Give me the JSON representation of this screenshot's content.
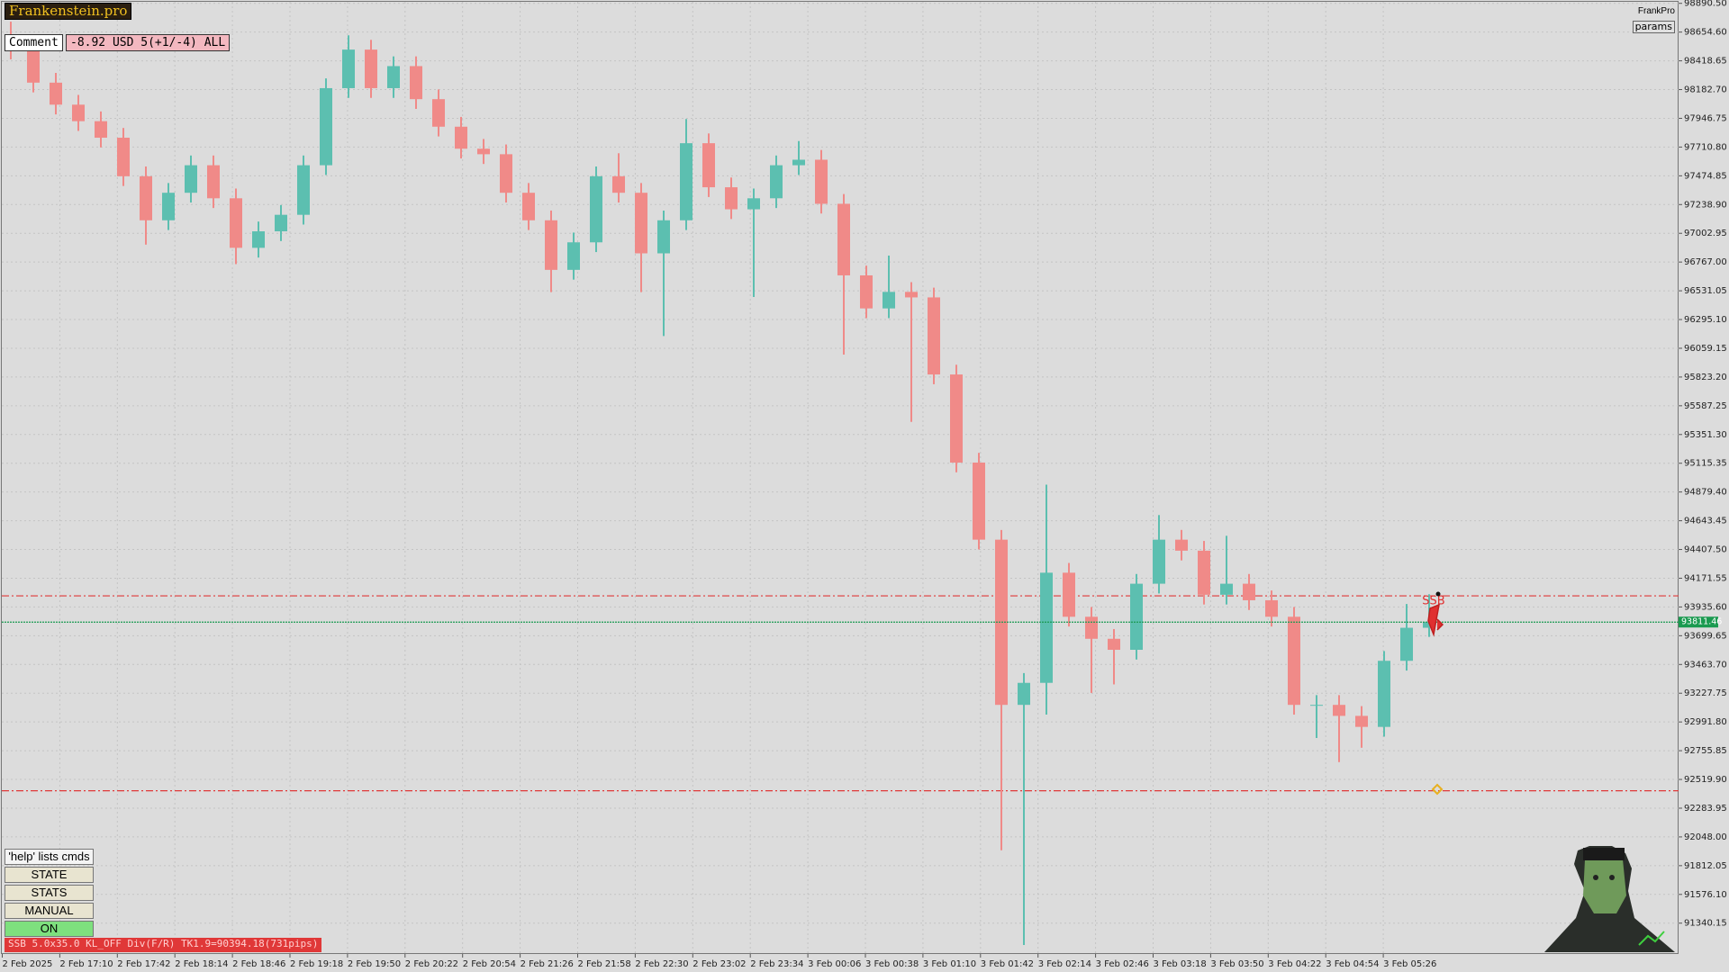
{
  "header": {
    "brand": "Frankenstein.pro",
    "comment_label": "Comment",
    "comment_value": "-8.92 USD 5(+1/-4) ALL",
    "top_right": "FrankPro",
    "params": "params"
  },
  "panel": {
    "buttons": [
      "'help' lists cmds",
      "STATE",
      "STATS",
      "MANUAL",
      "ON"
    ],
    "status": "SSB 5.0x35.0 KL_OFF Div(F/R) TK1.9=90394.18(731pips)"
  },
  "chart_data": {
    "type": "candlestick",
    "signal_label": "SSB",
    "up_color": "#5cbfb0",
    "down_color": "#f08a88",
    "grid": true,
    "ylim": [
      91087,
      98918
    ],
    "yticks": [
      {
        "value": 98890.5,
        "label": "98890.50"
      },
      {
        "value": 98654.6,
        "label": "98654.60"
      },
      {
        "value": 98418.65,
        "label": "98418.65"
      },
      {
        "value": 98182.7,
        "label": "98182.70"
      },
      {
        "value": 97946.75,
        "label": "97946.75"
      },
      {
        "value": 97710.8,
        "label": "97710.80"
      },
      {
        "value": 97474.85,
        "label": "97474.85"
      },
      {
        "value": 97238.9,
        "label": "97238.90"
      },
      {
        "value": 97002.95,
        "label": "97002.95"
      },
      {
        "value": 96767,
        "label": "96767.00"
      },
      {
        "value": 96531.05,
        "label": "96531.05"
      },
      {
        "value": 96295.1,
        "label": "96295.10"
      },
      {
        "value": 96059.15,
        "label": "96059.15"
      },
      {
        "value": 95823.2,
        "label": "95823.20"
      },
      {
        "value": 95587.25,
        "label": "95587.25"
      },
      {
        "value": 95351.3,
        "label": "95351.30"
      },
      {
        "value": 95115.35,
        "label": "95115.35"
      },
      {
        "value": 94879.4,
        "label": "94879.40"
      },
      {
        "value": 94643.45,
        "label": "94643.45"
      },
      {
        "value": 94407.5,
        "label": "94407.50"
      },
      {
        "value": 94171.55,
        "label": "94171.55"
      },
      {
        "value": 93935.6,
        "label": "93935.60"
      },
      {
        "value": 93699.65,
        "label": "93699.65"
      },
      {
        "value": 93463.7,
        "label": "93463.70"
      },
      {
        "value": 93227.75,
        "label": "93227.75"
      },
      {
        "value": 92991.8,
        "label": "92991.80"
      },
      {
        "value": 92755.85,
        "label": "92755.85"
      },
      {
        "value": 92519.9,
        "label": "92519.90"
      },
      {
        "value": 92283.95,
        "label": "92283.95"
      },
      {
        "value": 92048,
        "label": "92048.00"
      },
      {
        "value": 91812.05,
        "label": "91812.05"
      },
      {
        "value": 91576.1,
        "label": "91576.10"
      },
      {
        "value": 91340.15,
        "label": "91340.15"
      }
    ],
    "x_labels": [
      "2 Feb 2025",
      "2 Feb 17:10",
      "2 Feb 17:42",
      "2 Feb 18:14",
      "2 Feb 18:46",
      "2 Feb 19:18",
      "2 Feb 19:50",
      "2 Feb 20:22",
      "2 Feb 20:54",
      "2 Feb 21:26",
      "2 Feb 21:58",
      "2 Feb 22:30",
      "2 Feb 23:02",
      "2 Feb 23:34",
      "3 Feb 00:06",
      "3 Feb 00:38",
      "3 Feb 01:10",
      "3 Feb 01:42",
      "3 Feb 02:14",
      "3 Feb 02:46",
      "3 Feb 03:18",
      "3 Feb 03:50",
      "3 Feb 04:22",
      "3 Feb 04:54",
      "3 Feb 05:26"
    ],
    "current_price": 93811.46,
    "current_color": "#1a9a50",
    "levels": [
      {
        "value": 94027,
        "color": "#e03838"
      },
      {
        "value": 92427,
        "color": "#e03838"
      }
    ],
    "open": [
      98600.0,
      98510.8,
      98239.6,
      98058.8,
      97923.2,
      97787.6,
      97471.2,
      97109.6,
      97335.6,
      97561.6,
      97290.4,
      96883.6,
      97019.2,
      97154.8,
      97561.6,
      98194.4,
      98510.8,
      98194.4,
      98375.2,
      98104.0,
      97878.0,
      97697.2,
      97652.0,
      97335.6,
      97109.6,
      96702.8,
      96928.8,
      97471.2,
      97335.6,
      96838.4,
      97109.6,
      97742.4,
      97380.8,
      97200.0,
      97290.4,
      97561.6,
      97606.8,
      97245.2,
      96657.6,
      96386.4,
      96522.0,
      96476.8,
      95844.0,
      95120.8,
      94488.0,
      93132.0,
      93312.8,
      94216.8,
      93855.2,
      93674.4,
      93584.0,
      94126.4,
      94488.0,
      94397.6,
      94036.0,
      94126.4,
      93990.8,
      93855.2,
      93132.0,
      93132.0,
      93041.6,
      92951.2,
      93493.6,
      93764.8
    ],
    "high": [
      98740,
      98590.8,
      98319.6,
      98138.8,
      98003.2,
      97867.6,
      97551.2,
      97415.6,
      97641.6,
      97641.6,
      97370.4,
      97099.2,
      97234.8,
      97641.6,
      98274.4,
      98628.0,
      98590.8,
      98455.2,
      98455.2,
      98184.0,
      97958.0,
      97777.2,
      97732.0,
      97415.6,
      97189.6,
      97008.8,
      97551.2,
      97660,
      97415.6,
      97189.6,
      97941.0,
      97822.4,
      97460.8,
      97370.4,
      97641.6,
      97760,
      97686.8,
      97325.2,
      96737.6,
      96820,
      96602.0,
      96556.8,
      95924.0,
      95200.8,
      94568.0,
      93392.8,
      94940.0,
      94296.8,
      93935.2,
      93754.4,
      94206.4,
      94690,
      94568.0,
      94477.6,
      94520,
      94206.4,
      94070.8,
      93935.2,
      93212.0,
      93212.0,
      93121.6,
      93573.6,
      93960,
      94040
    ],
    "low": [
      98430.8,
      98159.6,
      97978.8,
      97843.2,
      97707.6,
      97391.2,
      96910,
      97029.6,
      97255.6,
      97210.4,
      96750,
      96803.6,
      96939.2,
      97074.8,
      97481.6,
      98114.4,
      98114.4,
      98114.4,
      98024.0,
      97798.0,
      97617.2,
      97572.0,
      97255.6,
      97029.6,
      96520,
      96622.8,
      96848.8,
      97255.6,
      96520,
      96160.0,
      97029.6,
      97300.8,
      97120.0,
      96480,
      97210.4,
      97481.6,
      97165.2,
      96007.0,
      96306.4,
      96306.4,
      95455.0,
      95764.0,
      95040.8,
      94408.0,
      91938.0,
      91161.0,
      93052.0,
      93775.2,
      93230,
      93300,
      93504.0,
      94046.4,
      94317.6,
      93956.0,
      93956.0,
      93910.8,
      93775.2,
      93052.0,
      92860.0,
      92662.0,
      92780,
      92871.2,
      93413.6,
      93690
    ],
    "close": [
      98510.8,
      98239.6,
      98058.8,
      97923.2,
      97787.6,
      97471.2,
      97109.6,
      97335.6,
      97561.6,
      97290.4,
      96883.6,
      97019.2,
      97154.8,
      97561.6,
      98194.4,
      98510.8,
      98194.4,
      98375.2,
      98104.0,
      97878.0,
      97697.2,
      97652.0,
      97335.6,
      97109.6,
      96702.8,
      96928.8,
      97471.2,
      97335.6,
      96838.4,
      97109.6,
      97742.4,
      97380.8,
      97200.0,
      97290.4,
      97561.6,
      97606.8,
      97245.2,
      96657.6,
      96386.4,
      96522.0,
      96476.8,
      95844.0,
      95120.8,
      94488.0,
      93132.0,
      93312.8,
      94216.8,
      93855.2,
      93674.4,
      93584.0,
      94126.4,
      94488.0,
      94397.6,
      94036.0,
      94126.4,
      93990.8,
      93855.2,
      93132.0,
      93132.0,
      93041.6,
      92951.2,
      93493.6,
      93764.8,
      93811.46
    ]
  }
}
